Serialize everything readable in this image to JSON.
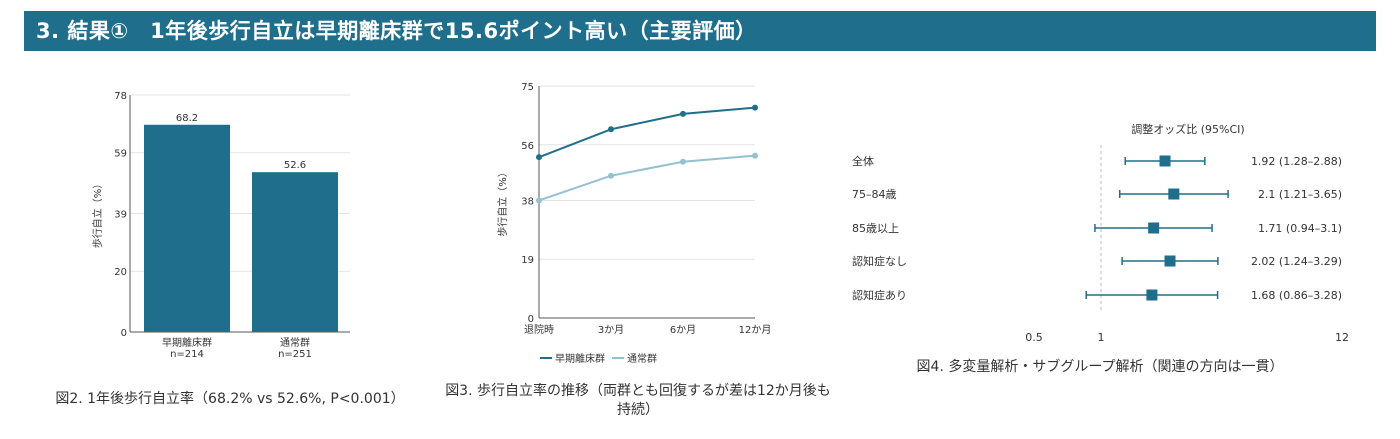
{
  "header": {
    "title": "3. 結果①　1年後歩行自立は早期離床群で15.6ポイント高い（主要評価）"
  },
  "captions": {
    "fig2": "図2. 1年後歩行自立率（68.2% vs 52.6%, P<0.001）",
    "fig3": "図3. 歩行自立率の推移（両群とも回復するが差は12か月後も持続）",
    "fig4": "図4. 多変量解析・サブグループ解析（関連の方向は一貫）"
  },
  "colors": {
    "primary": "#1f6e8c",
    "secondary": "#94c1cf",
    "grid": "#e3e3e3",
    "ref": "#bbbbbb"
  },
  "chart_data": [
    {
      "type": "bar",
      "ylabel": "歩行自立（%）",
      "ylim": [
        0,
        78
      ],
      "yticks": [
        "0",
        "20",
        "39",
        "59",
        "78"
      ],
      "categories": [
        "早期離床群",
        "通常群"
      ],
      "sublabels": [
        "n=214",
        "n=251"
      ],
      "values": [
        68.2,
        52.6
      ],
      "value_labels": [
        "68.2",
        "52.6"
      ]
    },
    {
      "type": "line",
      "ylabel": "歩行自立（%）",
      "ylim": [
        0,
        75
      ],
      "yticks": [
        "0",
        "19",
        "38",
        "56",
        "75"
      ],
      "x": [
        "退院時",
        "3か月",
        "6か月",
        "12か月"
      ],
      "series": [
        {
          "name": "早期離床群",
          "values": [
            52,
            61,
            66,
            68
          ]
        },
        {
          "name": "通常群",
          "values": [
            38,
            46,
            50.5,
            52.5
          ]
        }
      ]
    },
    {
      "type": "forest",
      "title": "調整オッズ比 (95%CI)",
      "scale": "log",
      "xticks": [
        "0.5",
        "1",
        "12"
      ],
      "rows": [
        {
          "label": "全体",
          "or": 1.92,
          "lo": 1.28,
          "hi": 2.88,
          "text": "1.92 (1.28–2.88)"
        },
        {
          "label": "75–84歳",
          "or": 2.1,
          "lo": 1.21,
          "hi": 3.65,
          "text": "2.1 (1.21–3.65)"
        },
        {
          "label": "85歳以上",
          "or": 1.71,
          "lo": 0.94,
          "hi": 3.1,
          "text": "1.71 (0.94–3.1)"
        },
        {
          "label": "認知症なし",
          "or": 2.02,
          "lo": 1.24,
          "hi": 3.29,
          "text": "2.02 (1.24–3.29)"
        },
        {
          "label": "認知症あり",
          "or": 1.68,
          "lo": 0.86,
          "hi": 3.28,
          "text": "1.68 (0.86–3.28)"
        }
      ]
    }
  ]
}
